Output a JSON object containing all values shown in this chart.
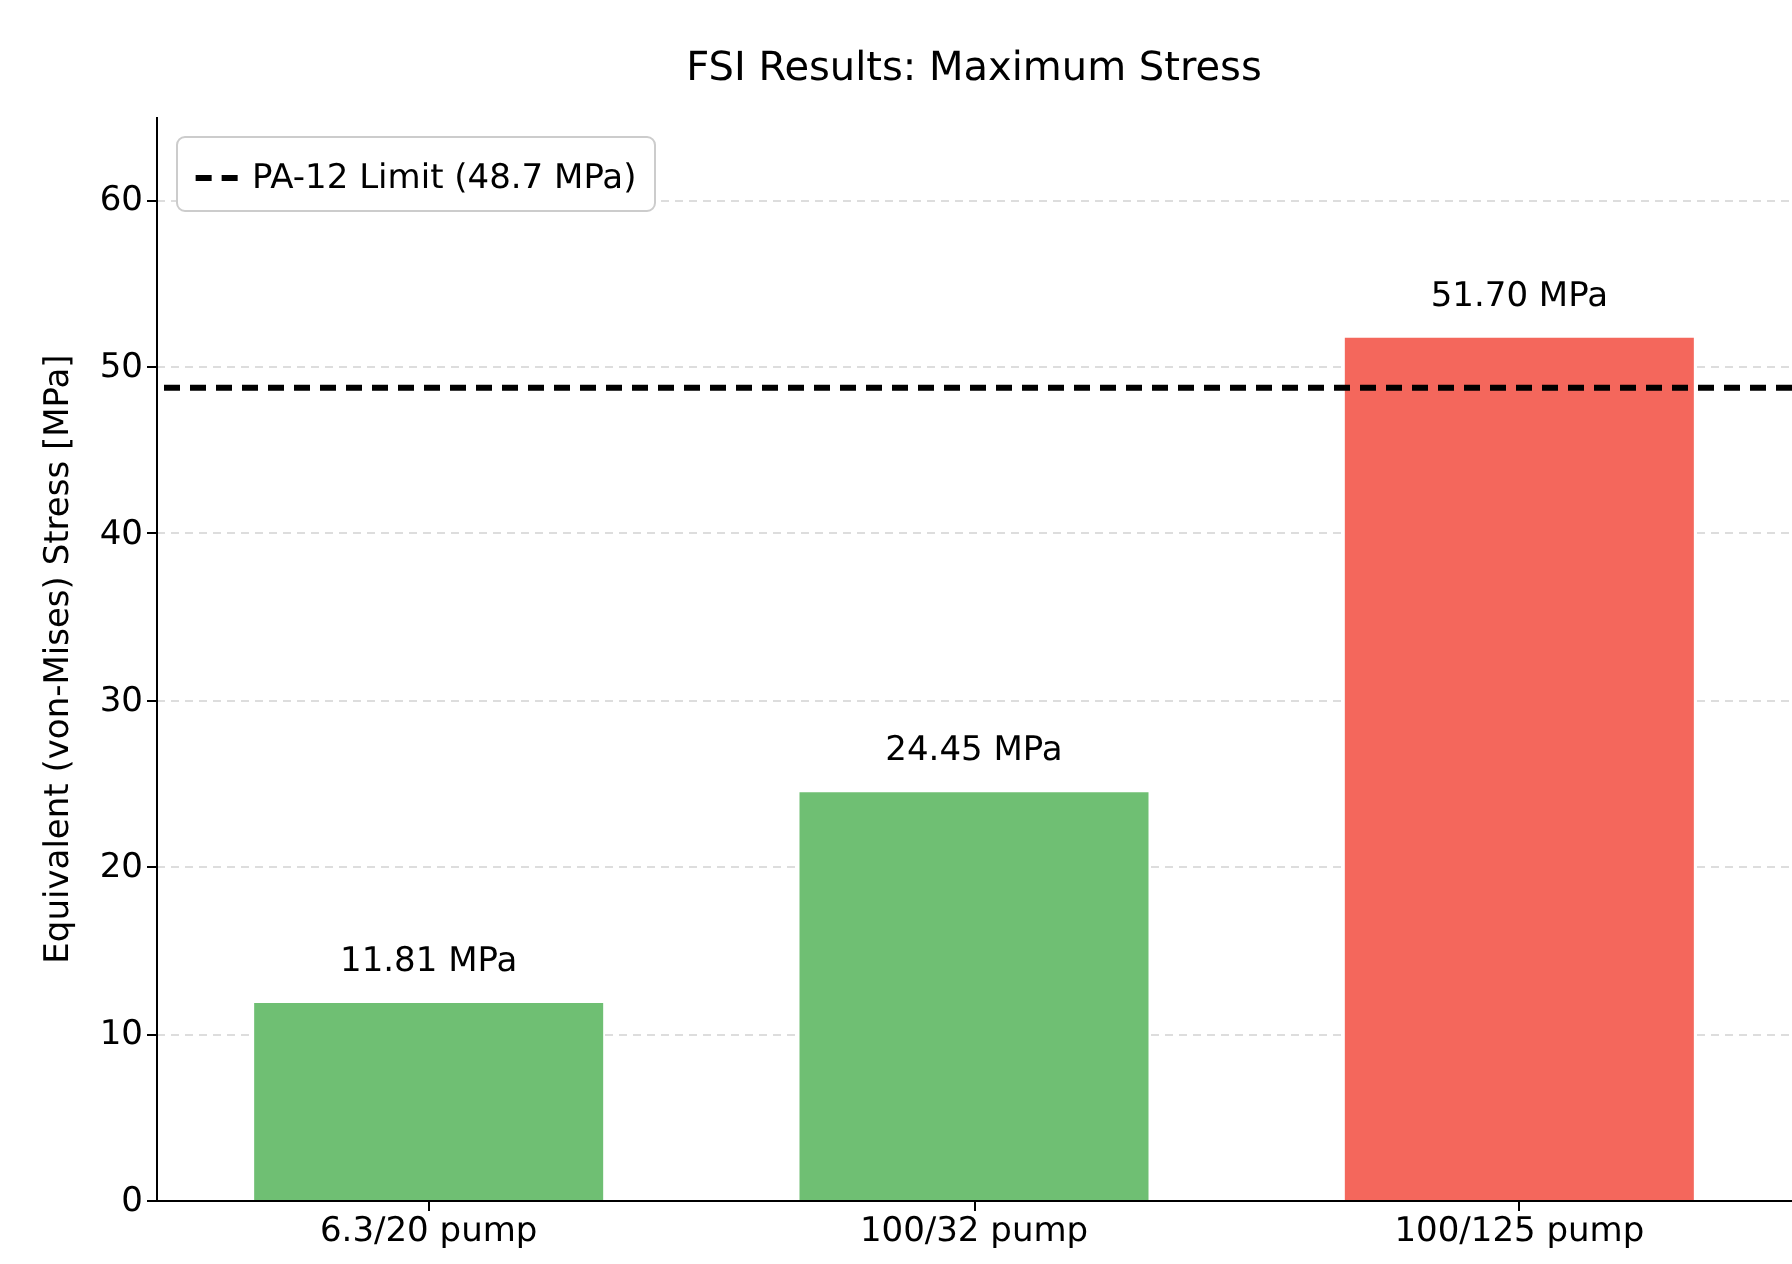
{
  "chart_data": {
    "type": "bar",
    "title": "FSI Results: Maximum Stress",
    "ylabel": "Equivalent (von-Mises) Stress [MPa]",
    "categories": [
      "6.3/20 pump",
      "100/32 pump",
      "100/125 pump"
    ],
    "values": [
      11.81,
      24.45,
      51.7
    ],
    "colors": [
      "#6fbf73",
      "#6fbf73",
      "#f4675c"
    ],
    "value_labels": [
      "11.81 MPa",
      "24.45 MPa",
      "51.70 MPa"
    ],
    "ylim": [
      0,
      65
    ],
    "yticks": [
      0,
      10,
      20,
      30,
      40,
      50,
      60
    ],
    "grid": "y",
    "legend": "top left",
    "ref_lines": [
      {
        "axis": "y",
        "value": 48.7,
        "label": "PA-12 Limit (48.7 MPa)",
        "color": "#000000",
        "line_style": "dashed"
      }
    ]
  }
}
